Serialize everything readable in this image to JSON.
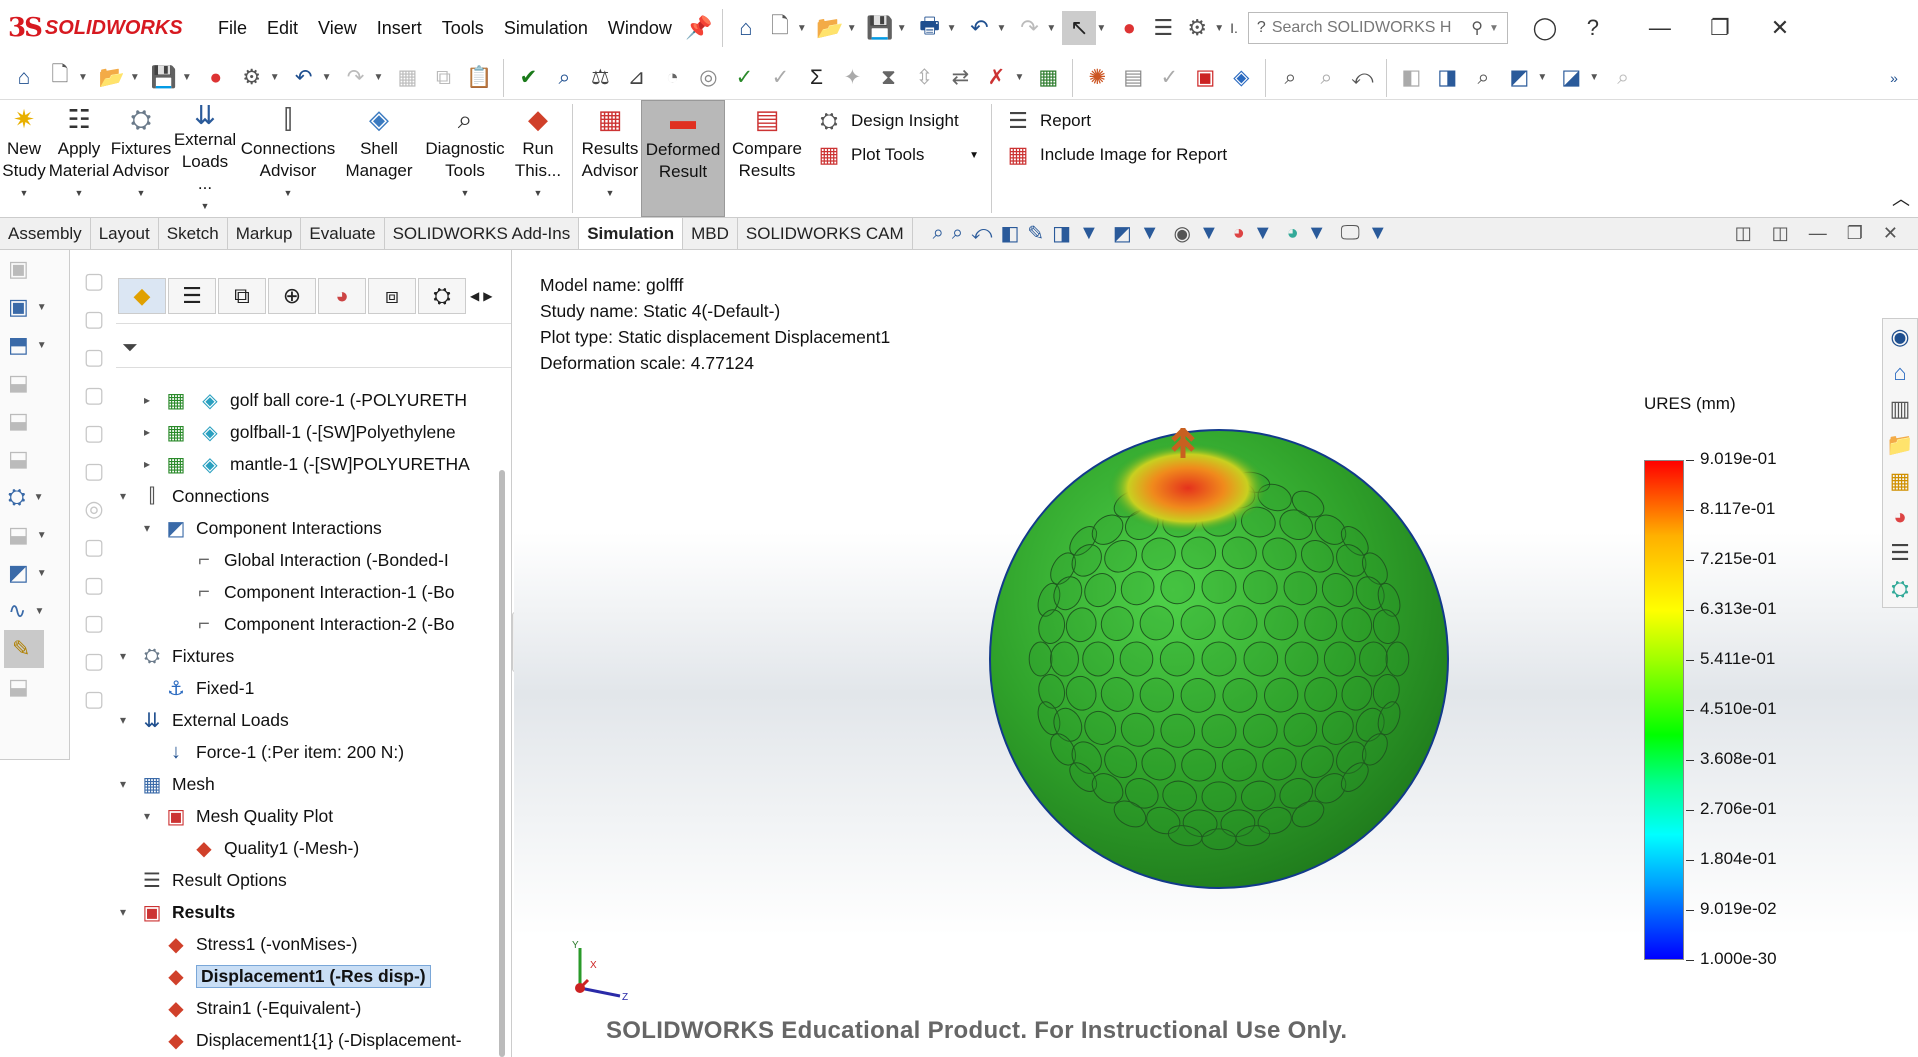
{
  "app": {
    "logo_ds": "3S",
    "logo_text": "SOLIDWORKS",
    "menu": [
      "File",
      "Edit",
      "View",
      "Insert",
      "Tools",
      "Simulation",
      "Window"
    ],
    "search_placeholder": "Search SOLIDWORKS H",
    "truncated_marker": "I."
  },
  "ribbon": {
    "buttons": [
      {
        "label1": "New",
        "label2": "Study",
        "icon": "new-study-icon"
      },
      {
        "label1": "Apply",
        "label2": "Material",
        "icon": "apply-material-icon"
      },
      {
        "label1": "Fixtures",
        "label2": "Advisor",
        "icon": "fixtures-advisor-icon"
      },
      {
        "label1": "External",
        "label2": "Loads ...",
        "icon": "external-loads-icon"
      },
      {
        "label1": "Connections",
        "label2": "Advisor",
        "icon": "connections-advisor-icon"
      },
      {
        "label1": "Shell",
        "label2": "Manager",
        "icon": "shell-manager-icon"
      },
      {
        "label1": "Diagnostic",
        "label2": "Tools",
        "icon": "diagnostic-tools-icon"
      },
      {
        "label1": "Run",
        "label2": "This...",
        "icon": "run-icon"
      },
      {
        "label1": "Results",
        "label2": "Advisor",
        "icon": "results-advisor-icon"
      },
      {
        "label1": "Deformed",
        "label2": "Result",
        "icon": "deformed-result-icon"
      },
      {
        "label1": "Compare",
        "label2": "Results",
        "icon": "compare-results-icon"
      }
    ],
    "small": {
      "design_insight": "Design Insight",
      "plot_tools": "Plot Tools",
      "report": "Report",
      "include_image": "Include Image for Report"
    }
  },
  "tabs": [
    "Assembly",
    "Layout",
    "Sketch",
    "Markup",
    "Evaluate",
    "SOLIDWORKS Add-Ins",
    "Simulation",
    "MBD",
    "SOLIDWORKS CAM"
  ],
  "active_tab": "Simulation",
  "tree": [
    {
      "label": "golf ball core-1 (-POLYURETH",
      "indent": 1,
      "twisty": "▸",
      "icon": "part-icon"
    },
    {
      "label": "golfball-1 (-[SW]Polyethylene",
      "indent": 1,
      "twisty": "▸",
      "icon": "part-icon"
    },
    {
      "label": "mantle-1 (-[SW]POLYURETHA",
      "indent": 1,
      "twisty": "▸",
      "icon": "part-icon"
    },
    {
      "label": "Connections",
      "indent": 0,
      "twisty": "▾",
      "icon": "connections-icon"
    },
    {
      "label": "Component Interactions",
      "indent": 1,
      "twisty": "▾",
      "icon": "component-interactions-icon"
    },
    {
      "label": "Global Interaction (-Bonded-I",
      "indent": 2,
      "twisty": "",
      "icon": "interaction-icon"
    },
    {
      "label": "Component Interaction-1 (-Bo",
      "indent": 2,
      "twisty": "",
      "icon": "interaction-icon"
    },
    {
      "label": "Component Interaction-2 (-Bo",
      "indent": 2,
      "twisty": "",
      "icon": "interaction-icon"
    },
    {
      "label": "Fixtures",
      "indent": 0,
      "twisty": "▾",
      "icon": "fixtures-icon"
    },
    {
      "label": "Fixed-1",
      "indent": 1,
      "twisty": "",
      "icon": "fixed-icon"
    },
    {
      "label": "External Loads",
      "indent": 0,
      "twisty": "▾",
      "icon": "external-loads-icon"
    },
    {
      "label": "Force-1 (:Per item: 200 N:)",
      "indent": 1,
      "twisty": "",
      "icon": "force-icon"
    },
    {
      "label": "Mesh",
      "indent": 0,
      "twisty": "▾",
      "icon": "mesh-icon"
    },
    {
      "label": "Mesh Quality Plot",
      "indent": 1,
      "twisty": "▾",
      "icon": "plot-folder-icon"
    },
    {
      "label": "Quality1 (-Mesh-)",
      "indent": 2,
      "twisty": "",
      "icon": "plot-icon"
    },
    {
      "label": "Result Options",
      "indent": 0,
      "twisty": "",
      "icon": "result-options-icon"
    },
    {
      "label": "Results",
      "indent": 0,
      "twisty": "▾",
      "icon": "results-folder-icon",
      "bold": true
    },
    {
      "label": "Stress1 (-vonMises-)",
      "indent": 1,
      "twisty": "",
      "icon": "stress-plot-icon"
    },
    {
      "label": "Displacement1 (-Res disp-)",
      "indent": 1,
      "twisty": "",
      "icon": "displacement-plot-icon",
      "selected": true
    },
    {
      "label": "Strain1 (-Equivalent-)",
      "indent": 1,
      "twisty": "",
      "icon": "strain-plot-icon"
    },
    {
      "label": "Displacement1{1} (-Displacement-",
      "indent": 1,
      "twisty": "",
      "icon": "displacement-plot-icon"
    }
  ],
  "plot_info": {
    "model_name": "Model name: golfff",
    "study_name": "Study name: Static 4(-Default-)",
    "plot_type": "Plot type: Static displacement Displacement1",
    "deformation": "Deformation scale: 4.77124"
  },
  "legend": {
    "title": "URES (mm)",
    "labels": [
      "9.019e-01",
      "8.117e-01",
      "7.215e-01",
      "6.313e-01",
      "5.411e-01",
      "4.510e-01",
      "3.608e-01",
      "2.706e-01",
      "1.804e-01",
      "9.019e-02",
      "1.000e-30"
    ]
  },
  "triad": {
    "y": "Y",
    "x": "X",
    "z": "Z"
  },
  "watermark": "SOLIDWORKS Educational Product. For Instructional Use Only.",
  "colors": {
    "accent": "#d71920",
    "ball": "#2fa12a",
    "hot": "#e5321c",
    "selection": "#c9def5"
  }
}
